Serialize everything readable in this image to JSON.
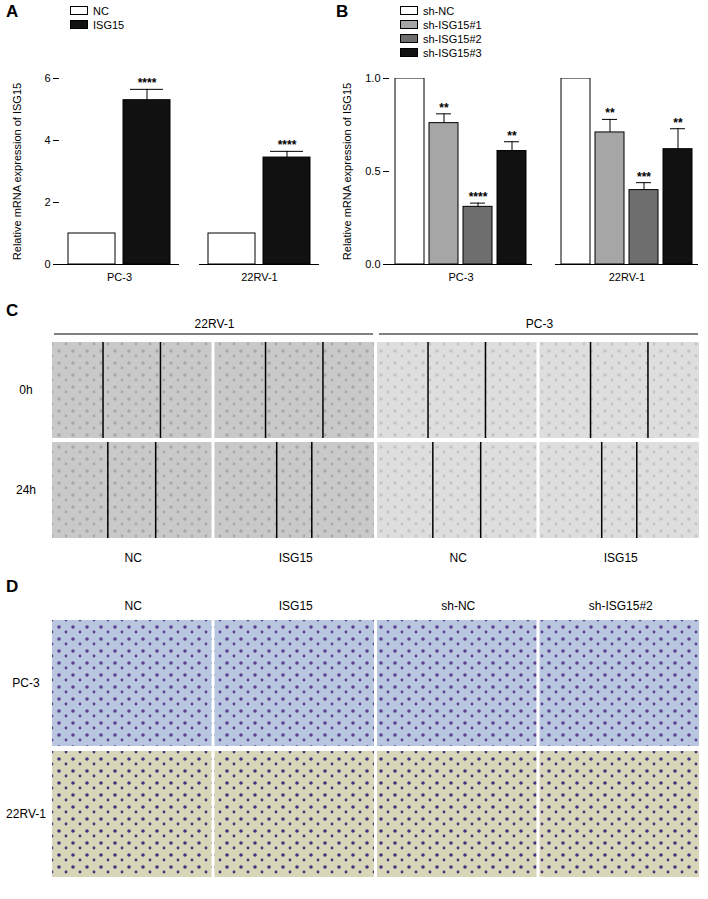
{
  "chart_data": [
    {
      "panel": "A",
      "type": "bar",
      "y_label": "Relative mRNA expression of ISG15",
      "categories": [
        "PC-3",
        "22RV-1"
      ],
      "series": [
        {
          "name": "NC",
          "color": "#ffffff",
          "values": [
            1,
            1
          ],
          "errors": [
            0,
            0
          ],
          "significance": [
            null,
            null
          ]
        },
        {
          "name": "ISG15",
          "color": "#111111",
          "values": [
            5.3,
            3.45
          ],
          "errors": [
            0.35,
            0.2
          ],
          "significance": [
            "****",
            "****"
          ]
        }
      ],
      "ylim": [
        0,
        6
      ],
      "yticks": [
        0,
        2,
        4,
        6
      ],
      "legend": "top-left"
    },
    {
      "panel": "B",
      "type": "bar",
      "y_label": "Relative mRNA expression of ISG15",
      "categories": [
        "PC-3",
        "22RV-1"
      ],
      "series": [
        {
          "name": "sh-NC",
          "color": "#ffffff",
          "values": [
            1,
            1
          ],
          "errors": [
            0,
            0
          ],
          "significance": [
            null,
            null
          ]
        },
        {
          "name": "sh-ISG15#1",
          "color": "#a6a6a6",
          "values": [
            0.76,
            0.71
          ],
          "errors": [
            0.05,
            0.07
          ],
          "significance": [
            "**",
            "**"
          ]
        },
        {
          "name": "sh-ISG15#2",
          "color": "#6e6e6e",
          "values": [
            0.31,
            0.4
          ],
          "errors": [
            0.02,
            0.04
          ],
          "significance": [
            "****",
            "***"
          ]
        },
        {
          "name": "sh-ISG15#3",
          "color": "#111111",
          "values": [
            0.61,
            0.62
          ],
          "errors": [
            0.05,
            0.11
          ],
          "significance": [
            "**",
            "**"
          ]
        }
      ],
      "ylim": [
        0,
        1
      ],
      "yticks": [
        {
          "value": 0,
          "label": "0.0"
        },
        {
          "value": 0.5,
          "label": "0.5"
        },
        {
          "value": 1,
          "label": "1.0"
        }
      ],
      "legend": "top-left"
    }
  ],
  "figures": [
    {
      "panel": "C",
      "type": "image_grid",
      "groups": [
        {
          "name": "22RV-1",
          "conditions": [
            "NC",
            "ISG15"
          ]
        },
        {
          "name": "PC-3",
          "conditions": [
            "NC",
            "ISG15"
          ]
        }
      ],
      "rows": [
        "0h",
        "24h"
      ]
    },
    {
      "panel": "D",
      "type": "image_grid",
      "columns": [
        "NC",
        "ISG15",
        "sh-NC",
        "sh-ISG15#2"
      ],
      "rows": [
        "PC-3",
        "22RV-1"
      ]
    }
  ]
}
